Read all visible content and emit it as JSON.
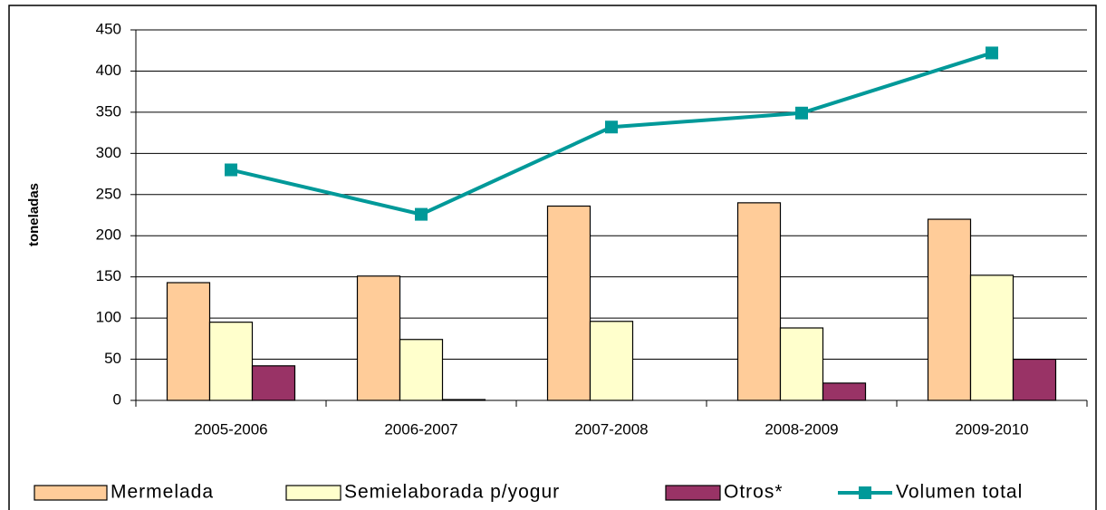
{
  "chart_data": {
    "type": "bar",
    "y_label": "toneladas",
    "categories": [
      "2005-2006",
      "2006-2007",
      "2007-2008",
      "2008-2009",
      "2009-2010"
    ],
    "series": [
      {
        "name": "Mermelada",
        "color": "#ffcc99",
        "values": [
          143,
          151,
          236,
          240,
          220
        ]
      },
      {
        "name": "Semielaborada p/yogur",
        "color": "#ffffcc",
        "values": [
          95,
          74,
          96,
          88,
          152
        ]
      },
      {
        "name": "Otros*",
        "color": "#993366",
        "values": [
          42,
          1,
          0,
          21,
          50
        ]
      },
      {
        "name": "Volumen total",
        "color": "#009999",
        "type": "line",
        "values": [
          280,
          226,
          332,
          349,
          422
        ]
      }
    ],
    "ylim": [
      0,
      450
    ],
    "yticks": [
      0,
      50,
      100,
      150,
      200,
      250,
      300,
      350,
      400,
      450
    ],
    "grid": true,
    "legend": "bottom"
  }
}
